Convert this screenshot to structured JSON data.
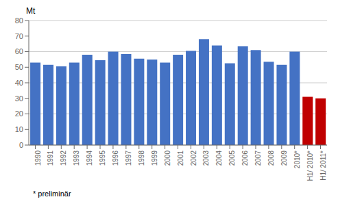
{
  "chart_data": {
    "type": "bar",
    "ylabel": "Mt",
    "annotations": [
      "* preliminär"
    ],
    "categories": [
      "1990",
      "1991",
      "1992",
      "1993",
      "1994",
      "1995",
      "1996",
      "1997",
      "1998",
      "1999",
      "2000",
      "2001",
      "2002",
      "2003",
      "2004",
      "2005",
      "2006",
      "2007",
      "2008",
      "2009",
      "2010*",
      "H1/ 2010*",
      "H1/ 2011*"
    ],
    "values": [
      53,
      51.5,
      50.5,
      53,
      58,
      54.5,
      60,
      58.5,
      55.5,
      55,
      53,
      58,
      60.5,
      68,
      64,
      52.5,
      63.5,
      61,
      53.5,
      51.5,
      60,
      31,
      30
    ],
    "colors": [
      "#4472C4",
      "#4472C4",
      "#4472C4",
      "#4472C4",
      "#4472C4",
      "#4472C4",
      "#4472C4",
      "#4472C4",
      "#4472C4",
      "#4472C4",
      "#4472C4",
      "#4472C4",
      "#4472C4",
      "#4472C4",
      "#4472C4",
      "#4472C4",
      "#4472C4",
      "#4472C4",
      "#4472C4",
      "#4472C4",
      "#4472C4",
      "#C00000",
      "#C00000"
    ],
    "ylim": [
      0,
      80
    ],
    "yticks": [
      0,
      10,
      20,
      30,
      40,
      50,
      60,
      70,
      80
    ],
    "grid": true
  }
}
